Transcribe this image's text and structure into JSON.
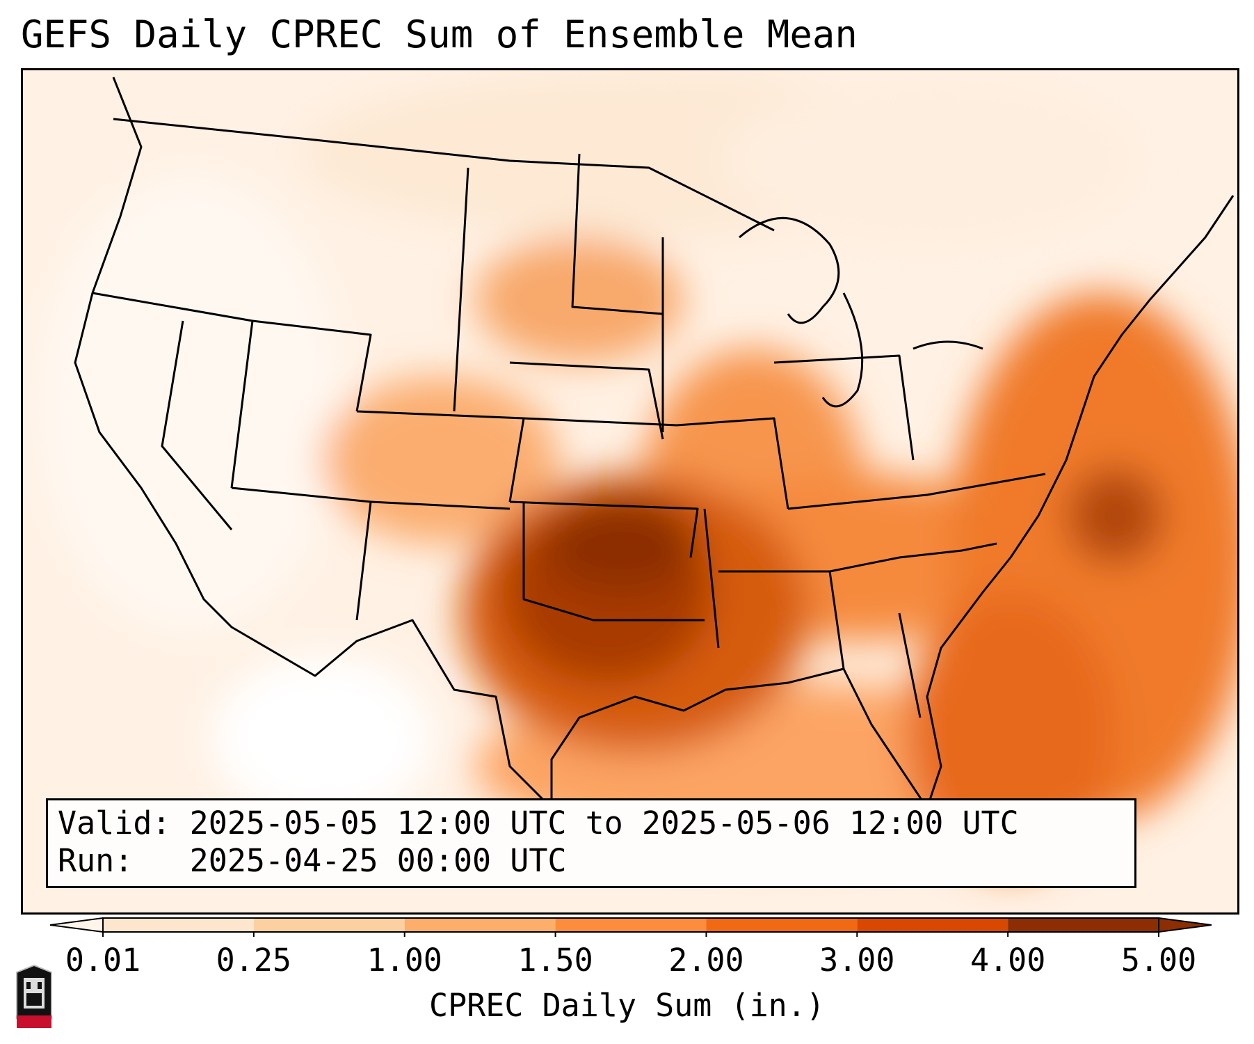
{
  "title": "GEFS Daily CPREC Sum of Ensemble Mean",
  "infobox": {
    "valid_label": "Valid:",
    "valid_value": "2025-05-05 12:00 UTC to 2025-05-06 12:00 UTC",
    "run_label": "Run:",
    "run_value": "2025-04-25 00:00 UTC"
  },
  "colorbar": {
    "label": "CPREC Daily Sum (in.)",
    "ticks": [
      "0.01",
      "0.25",
      "1.00",
      "1.50",
      "2.00",
      "3.00",
      "4.00",
      "5.00"
    ],
    "colors": [
      "#fff5eb",
      "#fee6ce",
      "#fdd0a2",
      "#fdae6b",
      "#fd8d3c",
      "#f16913",
      "#d94801",
      "#8c2d04"
    ]
  },
  "logo": {
    "text": "NIU"
  }
}
